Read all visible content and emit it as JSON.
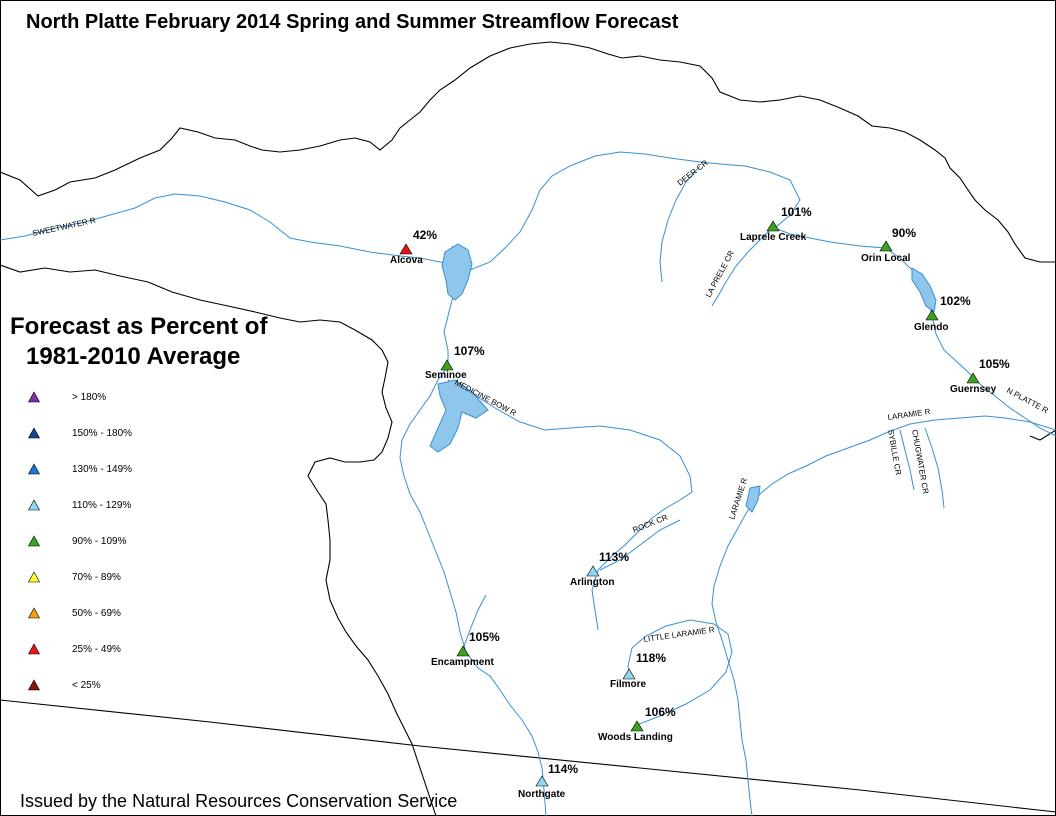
{
  "title": "North Platte February 2014 Spring and Summer Streamflow Forecast",
  "legend": {
    "title_line1": "Forecast as Percent of",
    "title_line2": "1981-2010 Average",
    "items": [
      {
        "label": "> 180%",
        "color": "#7b2fa8"
      },
      {
        "label": "150% - 180%",
        "color": "#1f3f8f"
      },
      {
        "label": "130% - 149%",
        "color": "#1e73d6"
      },
      {
        "label": "110% - 129%",
        "color": "#8fd8ee"
      },
      {
        "label": "90% - 109%",
        "color": "#3ca21f"
      },
      {
        "label": "70% - 89%",
        "color": "#ffff33"
      },
      {
        "label": "50% - 69%",
        "color": "#f2a013"
      },
      {
        "label": "25% - 49%",
        "color": "#e8141a"
      },
      {
        "label": "< 25%",
        "color": "#8b1010"
      }
    ]
  },
  "stations": [
    {
      "name": "Alcova",
      "percent": "42%",
      "color": "#e8141a"
    },
    {
      "name": "Laprele Creek",
      "percent": "101%",
      "color": "#3ca21f"
    },
    {
      "name": "Orin Local",
      "percent": "90%",
      "color": "#3ca21f"
    },
    {
      "name": "Glendo",
      "percent": "102%",
      "color": "#3ca21f"
    },
    {
      "name": "Guernsey",
      "percent": "105%",
      "color": "#3ca21f"
    },
    {
      "name": "Seminoe",
      "percent": "107%",
      "color": "#3ca21f"
    },
    {
      "name": "Arlington",
      "percent": "113%",
      "color": "#8fd8ee"
    },
    {
      "name": "Encampment",
      "percent": "105%",
      "color": "#3ca21f"
    },
    {
      "name": "Filmore",
      "percent": "118%",
      "color": "#8fd8ee"
    },
    {
      "name": "Woods Landing",
      "percent": "106%",
      "color": "#3ca21f"
    },
    {
      "name": "Northgate",
      "percent": "114%",
      "color": "#8fd8ee"
    }
  ],
  "rivers": {
    "sweetwater": "SWEETWATER R",
    "deer_cr": "DEER CR",
    "laprele_cr": "LA PRELE CR",
    "medicine_bow": "MEDICINE BOW R",
    "rock_cr": "ROCK CR",
    "laramie_r": "LARAMIE R",
    "laramie_r2": "LARAMIE R",
    "sybille_cr": "SYBILLE CR",
    "chugwater_cr": "CHUGWATER CR",
    "n_platte": "N PLATTE R",
    "little_laramie": "LITTLE LARAMIE R"
  },
  "colors": {
    "river": "#3a8fd1",
    "lake": "#8fc6ec",
    "boundary": "#000000"
  },
  "footer": "Issued by the Natural Resources Conservation Service"
}
